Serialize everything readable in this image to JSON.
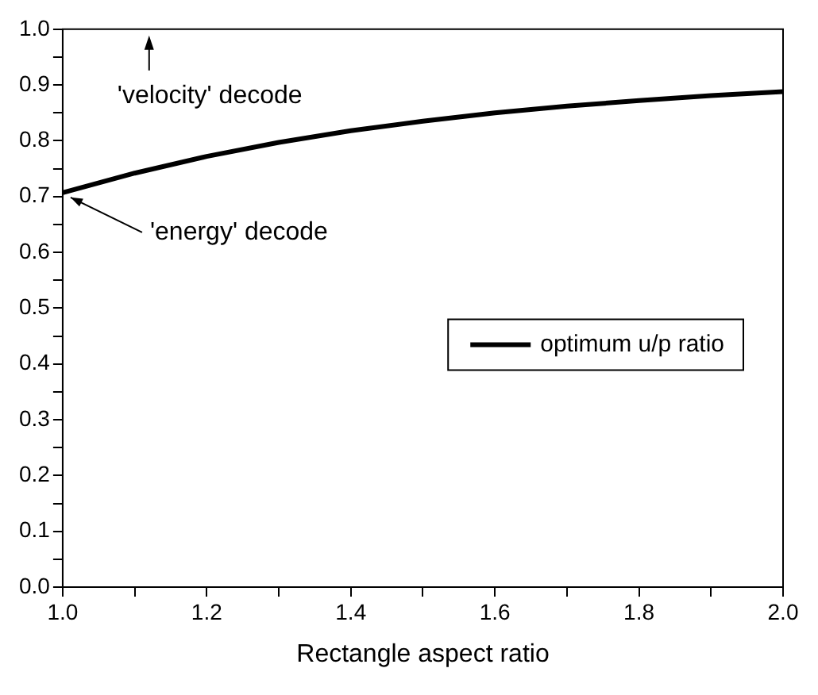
{
  "chart_data": {
    "type": "line",
    "xlabel": "Rectangle aspect ratio",
    "x": [
      1.0,
      1.1,
      1.2,
      1.3,
      1.4,
      1.5,
      1.6,
      1.7,
      1.8,
      1.9,
      2.0
    ],
    "series": [
      {
        "name": "optimum u/p ratio",
        "color": "#000000",
        "values": [
          0.707,
          0.742,
          0.772,
          0.797,
          0.818,
          0.835,
          0.85,
          0.862,
          0.872,
          0.881,
          0.888
        ]
      }
    ],
    "xlim": [
      1.0,
      2.0
    ],
    "xticks": [
      {
        "value": 1.0,
        "label": "1.0"
      },
      {
        "value": 1.1,
        "label": null
      },
      1.2,
      {
        "value": 1.3,
        "label": null
      },
      1.4,
      {
        "value": 1.5,
        "label": null
      },
      1.6,
      {
        "value": 1.7,
        "label": null
      },
      1.8,
      {
        "value": 1.9,
        "label": null
      },
      {
        "value": 2.0,
        "label": "2.0"
      }
    ],
    "ylim": [
      0,
      1.0
    ],
    "yticks": [
      {
        "value": 0,
        "label": "0.0"
      },
      {
        "value": 0.05,
        "label": null
      },
      0.1,
      {
        "value": 0.15,
        "label": null
      },
      0.2,
      {
        "value": 0.25,
        "label": null
      },
      0.3,
      {
        "value": 0.35,
        "label": null
      },
      0.4,
      {
        "value": 0.45,
        "label": null
      },
      0.5,
      {
        "value": 0.55,
        "label": null
      },
      0.6,
      {
        "value": 0.65,
        "label": null
      },
      0.7,
      {
        "value": 0.75,
        "label": null
      },
      0.8,
      {
        "value": 0.85,
        "label": null
      },
      0.9,
      {
        "value": 0.95,
        "label": null
      },
      {
        "value": 1.0,
        "label": "1.0"
      }
    ],
    "annotations": [
      "'velocity' decode",
      {
        "text": "'energy' decode",
        "x": 1.0,
        "y": 0.707
      }
    ],
    "grid": false,
    "legend": "right",
    "marker": "none",
    "line_style": "solid"
  }
}
